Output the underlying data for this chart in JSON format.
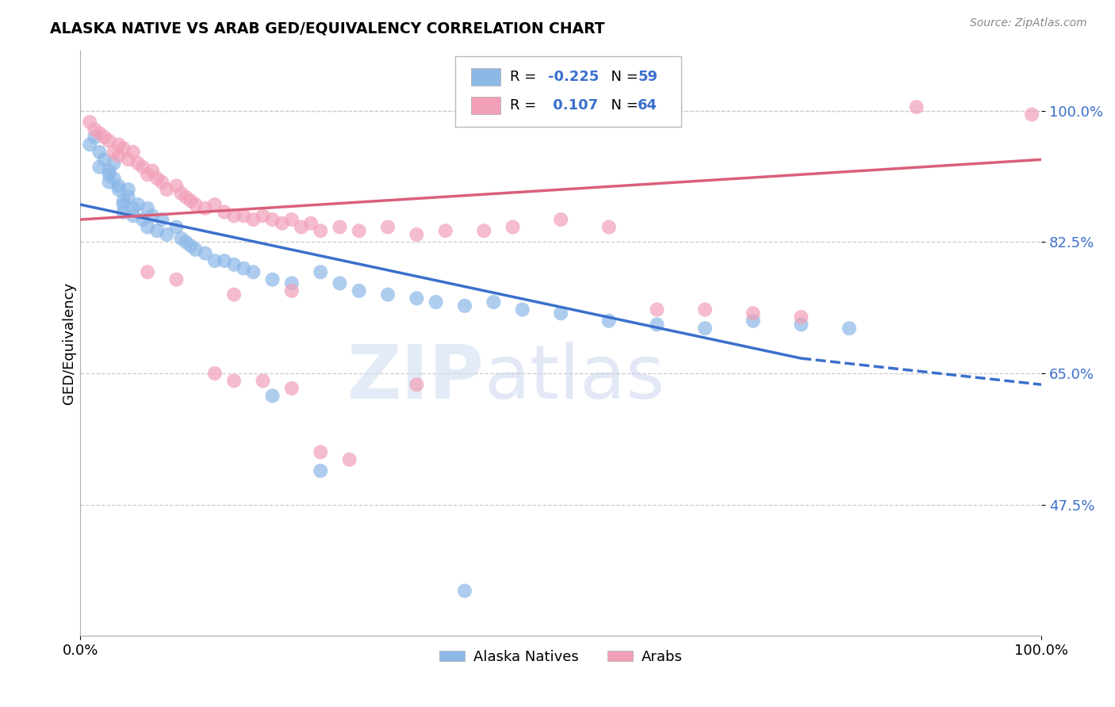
{
  "title": "ALASKA NATIVE VS ARAB GED/EQUIVALENCY CORRELATION CHART",
  "source": "Source: ZipAtlas.com",
  "ylabel": "GED/Equivalency",
  "xlim": [
    0.0,
    1.0
  ],
  "ylim": [
    0.3,
    1.08
  ],
  "yticks": [
    0.475,
    0.65,
    0.825,
    1.0
  ],
  "ytick_labels": [
    "47.5%",
    "65.0%",
    "82.5%",
    "100.0%"
  ],
  "xtick_labels": [
    "0.0%",
    "100.0%"
  ],
  "xtick_pos": [
    0.0,
    1.0
  ],
  "alaska_line_color": "#3B6FCC",
  "arab_line_color": "#D9607A",
  "alaska_color": "#8CB8E8",
  "arab_color": "#F2A0B8",
  "watermark_zip": "ZIP",
  "watermark_atlas": "atlas",
  "alaska_natives": [
    [
      0.01,
      0.955
    ],
    [
      0.015,
      0.965
    ],
    [
      0.02,
      0.945
    ],
    [
      0.02,
      0.925
    ],
    [
      0.025,
      0.935
    ],
    [
      0.03,
      0.92
    ],
    [
      0.03,
      0.915
    ],
    [
      0.03,
      0.905
    ],
    [
      0.035,
      0.93
    ],
    [
      0.035,
      0.91
    ],
    [
      0.04,
      0.9
    ],
    [
      0.04,
      0.895
    ],
    [
      0.045,
      0.88
    ],
    [
      0.045,
      0.875
    ],
    [
      0.045,
      0.865
    ],
    [
      0.05,
      0.895
    ],
    [
      0.05,
      0.885
    ],
    [
      0.055,
      0.87
    ],
    [
      0.055,
      0.86
    ],
    [
      0.06,
      0.875
    ],
    [
      0.065,
      0.855
    ],
    [
      0.07,
      0.87
    ],
    [
      0.07,
      0.845
    ],
    [
      0.075,
      0.86
    ],
    [
      0.08,
      0.84
    ],
    [
      0.085,
      0.855
    ],
    [
      0.09,
      0.835
    ],
    [
      0.1,
      0.845
    ],
    [
      0.105,
      0.83
    ],
    [
      0.11,
      0.825
    ],
    [
      0.115,
      0.82
    ],
    [
      0.12,
      0.815
    ],
    [
      0.13,
      0.81
    ],
    [
      0.14,
      0.8
    ],
    [
      0.15,
      0.8
    ],
    [
      0.16,
      0.795
    ],
    [
      0.17,
      0.79
    ],
    [
      0.18,
      0.785
    ],
    [
      0.2,
      0.775
    ],
    [
      0.22,
      0.77
    ],
    [
      0.25,
      0.785
    ],
    [
      0.27,
      0.77
    ],
    [
      0.29,
      0.76
    ],
    [
      0.32,
      0.755
    ],
    [
      0.35,
      0.75
    ],
    [
      0.37,
      0.745
    ],
    [
      0.4,
      0.74
    ],
    [
      0.43,
      0.745
    ],
    [
      0.46,
      0.735
    ],
    [
      0.5,
      0.73
    ],
    [
      0.55,
      0.72
    ],
    [
      0.6,
      0.715
    ],
    [
      0.65,
      0.71
    ],
    [
      0.7,
      0.72
    ],
    [
      0.75,
      0.715
    ],
    [
      0.8,
      0.71
    ],
    [
      0.2,
      0.62
    ],
    [
      0.25,
      0.52
    ],
    [
      0.4,
      0.36
    ]
  ],
  "arabs": [
    [
      0.01,
      0.985
    ],
    [
      0.015,
      0.975
    ],
    [
      0.02,
      0.97
    ],
    [
      0.025,
      0.965
    ],
    [
      0.03,
      0.96
    ],
    [
      0.035,
      0.945
    ],
    [
      0.04,
      0.955
    ],
    [
      0.04,
      0.94
    ],
    [
      0.045,
      0.95
    ],
    [
      0.05,
      0.935
    ],
    [
      0.055,
      0.945
    ],
    [
      0.06,
      0.93
    ],
    [
      0.065,
      0.925
    ],
    [
      0.07,
      0.915
    ],
    [
      0.075,
      0.92
    ],
    [
      0.08,
      0.91
    ],
    [
      0.085,
      0.905
    ],
    [
      0.09,
      0.895
    ],
    [
      0.1,
      0.9
    ],
    [
      0.105,
      0.89
    ],
    [
      0.11,
      0.885
    ],
    [
      0.115,
      0.88
    ],
    [
      0.12,
      0.875
    ],
    [
      0.13,
      0.87
    ],
    [
      0.14,
      0.875
    ],
    [
      0.15,
      0.865
    ],
    [
      0.16,
      0.86
    ],
    [
      0.17,
      0.86
    ],
    [
      0.18,
      0.855
    ],
    [
      0.19,
      0.86
    ],
    [
      0.2,
      0.855
    ],
    [
      0.21,
      0.85
    ],
    [
      0.22,
      0.855
    ],
    [
      0.23,
      0.845
    ],
    [
      0.24,
      0.85
    ],
    [
      0.25,
      0.84
    ],
    [
      0.27,
      0.845
    ],
    [
      0.29,
      0.84
    ],
    [
      0.32,
      0.845
    ],
    [
      0.35,
      0.835
    ],
    [
      0.38,
      0.84
    ],
    [
      0.42,
      0.84
    ],
    [
      0.45,
      0.845
    ],
    [
      0.5,
      0.855
    ],
    [
      0.55,
      0.845
    ],
    [
      0.65,
      0.735
    ],
    [
      0.7,
      0.73
    ],
    [
      0.75,
      0.725
    ],
    [
      0.14,
      0.65
    ],
    [
      0.16,
      0.64
    ],
    [
      0.19,
      0.64
    ],
    [
      0.22,
      0.63
    ],
    [
      0.25,
      0.545
    ],
    [
      0.28,
      0.535
    ],
    [
      0.35,
      0.635
    ],
    [
      0.87,
      1.005
    ],
    [
      0.99,
      0.995
    ],
    [
      0.6,
      0.735
    ],
    [
      0.07,
      0.785
    ],
    [
      0.1,
      0.775
    ],
    [
      0.16,
      0.755
    ],
    [
      0.22,
      0.76
    ]
  ]
}
